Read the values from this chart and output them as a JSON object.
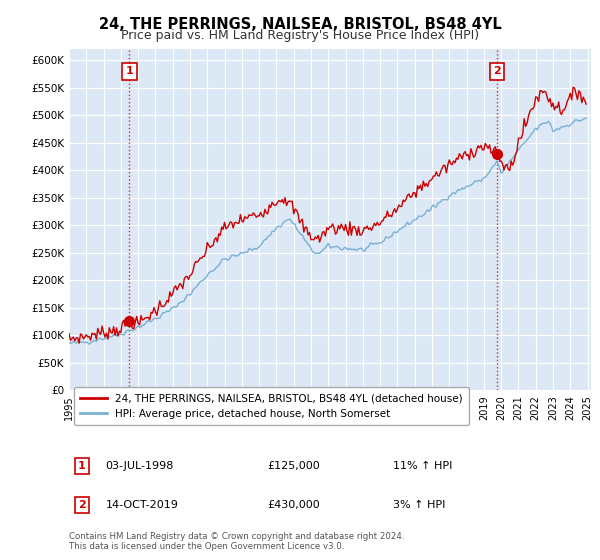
{
  "title": "24, THE PERRINGS, NAILSEA, BRISTOL, BS48 4YL",
  "subtitle": "Price paid vs. HM Land Registry's House Price Index (HPI)",
  "title_fontsize": 10.5,
  "subtitle_fontsize": 9,
  "ylabel_ticks": [
    "£0",
    "£50K",
    "£100K",
    "£150K",
    "£200K",
    "£250K",
    "£300K",
    "£350K",
    "£400K",
    "£450K",
    "£500K",
    "£550K",
    "£600K"
  ],
  "ytick_values": [
    0,
    50000,
    100000,
    150000,
    200000,
    250000,
    300000,
    350000,
    400000,
    450000,
    500000,
    550000,
    600000
  ],
  "ylim": [
    0,
    620000
  ],
  "xlim_start": 1995.0,
  "xlim_end": 2025.2,
  "background_color": "#ffffff",
  "plot_bg_color": "#dce8f5",
  "grid_color": "#ffffff",
  "red_color": "#cc0000",
  "blue_color": "#7ab0d4",
  "sale1_x": 1998.5,
  "sale1_y": 125000,
  "sale1_label": "1",
  "sale2_x": 2019.75,
  "sale2_y": 430000,
  "sale2_label": "2",
  "legend_line1": "24, THE PERRINGS, NAILSEA, BRISTOL, BS48 4YL (detached house)",
  "legend_line2": "HPI: Average price, detached house, North Somerset",
  "footer1": "Contains HM Land Registry data © Crown copyright and database right 2024.",
  "footer2": "This data is licensed under the Open Government Licence v3.0.",
  "xtick_years": [
    1995,
    1996,
    1997,
    1998,
    1999,
    2000,
    2001,
    2002,
    2003,
    2004,
    2005,
    2006,
    2007,
    2008,
    2009,
    2010,
    2011,
    2012,
    2013,
    2014,
    2015,
    2016,
    2017,
    2018,
    2019,
    2020,
    2021,
    2022,
    2023,
    2024,
    2025
  ]
}
